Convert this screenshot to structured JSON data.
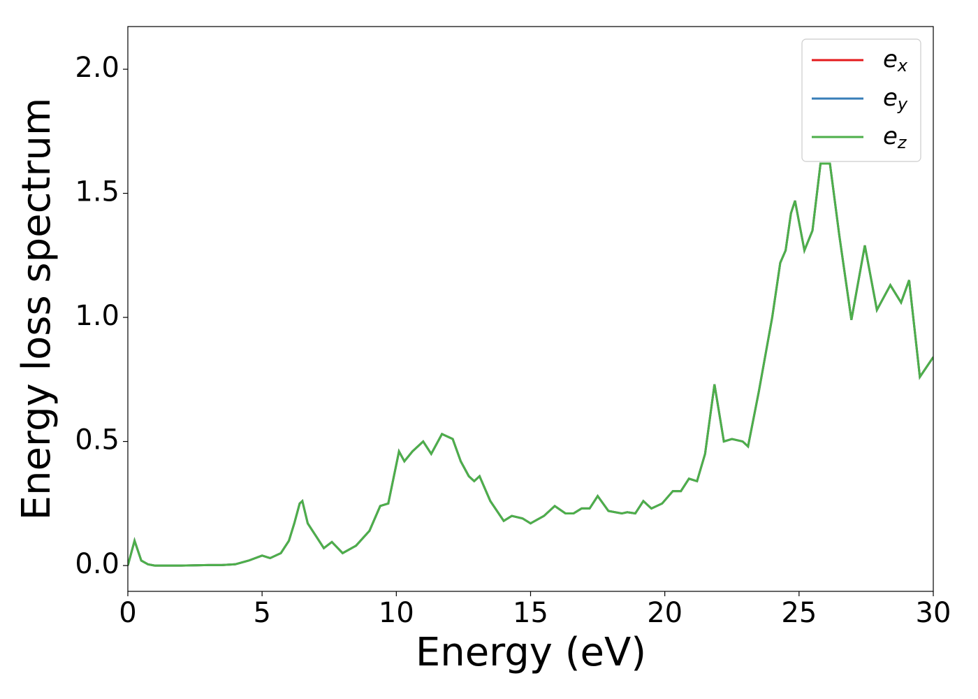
{
  "chart_data": {
    "type": "line",
    "xlabel": "Energy (eV)",
    "ylabel": "Energy loss spectrum",
    "x": [
      0,
      0.25,
      0.5,
      0.75,
      1,
      2,
      3,
      3.5,
      4,
      4.5,
      5,
      5.3,
      5.7,
      6,
      6.2,
      6.4,
      6.5,
      6.7,
      7,
      7.3,
      7.6,
      8,
      8.5,
      9,
      9.4,
      9.7,
      10.1,
      10.3,
      10.6,
      11,
      11.3,
      11.7,
      12.1,
      12.4,
      12.7,
      12.9,
      13.1,
      13.5,
      14,
      14.3,
      14.7,
      15,
      15.5,
      15.9,
      16.3,
      16.6,
      16.9,
      17.2,
      17.5,
      17.9,
      18.4,
      18.6,
      18.9,
      19.2,
      19.5,
      19.9,
      20.3,
      20.6,
      20.9,
      21.2,
      21.5,
      21.85,
      22.2,
      22.5,
      22.9,
      23.1,
      23.5,
      24,
      24.3,
      24.5,
      24.7,
      24.85,
      25.2,
      25.5,
      25.8,
      26,
      26.15,
      26.5,
      26.95,
      27.45,
      27.9,
      28.4,
      28.8,
      29.1,
      29.5,
      30
    ],
    "series": [
      {
        "name": "e_x",
        "color": "#e41a1c",
        "values": [
          0,
          0.1,
          0.02,
          0.005,
          0,
          0,
          0.002,
          0.002,
          0.005,
          0.02,
          0.04,
          0.03,
          0.05,
          0.1,
          0.17,
          0.25,
          0.26,
          0.17,
          0.12,
          0.07,
          0.095,
          0.05,
          0.08,
          0.14,
          0.24,
          0.25,
          0.46,
          0.42,
          0.46,
          0.5,
          0.45,
          0.53,
          0.51,
          0.42,
          0.36,
          0.34,
          0.36,
          0.26,
          0.18,
          0.2,
          0.19,
          0.17,
          0.2,
          0.24,
          0.21,
          0.21,
          0.23,
          0.23,
          0.28,
          0.22,
          0.21,
          0.215,
          0.21,
          0.26,
          0.23,
          0.25,
          0.3,
          0.3,
          0.35,
          0.34,
          0.45,
          0.73,
          0.5,
          0.51,
          0.5,
          0.48,
          0.7,
          1.0,
          1.22,
          1.27,
          1.42,
          1.47,
          1.27,
          1.35,
          1.62,
          1.62,
          1.62,
          1.33,
          0.99,
          1.29,
          1.03,
          1.13,
          1.06,
          1.15,
          0.76,
          0.84
        ]
      },
      {
        "name": "e_y",
        "color": "#377eb8",
        "values": [
          0,
          0.1,
          0.02,
          0.005,
          0,
          0,
          0.002,
          0.002,
          0.005,
          0.02,
          0.04,
          0.03,
          0.05,
          0.1,
          0.17,
          0.25,
          0.26,
          0.17,
          0.12,
          0.07,
          0.095,
          0.05,
          0.08,
          0.14,
          0.24,
          0.25,
          0.46,
          0.42,
          0.46,
          0.5,
          0.45,
          0.53,
          0.51,
          0.42,
          0.36,
          0.34,
          0.36,
          0.26,
          0.18,
          0.2,
          0.19,
          0.17,
          0.2,
          0.24,
          0.21,
          0.21,
          0.23,
          0.23,
          0.28,
          0.22,
          0.21,
          0.215,
          0.21,
          0.26,
          0.23,
          0.25,
          0.3,
          0.3,
          0.35,
          0.34,
          0.45,
          0.73,
          0.5,
          0.51,
          0.5,
          0.48,
          0.7,
          1.0,
          1.22,
          1.27,
          1.42,
          1.47,
          1.27,
          1.35,
          1.62,
          1.62,
          1.62,
          1.33,
          0.99,
          1.29,
          1.03,
          1.13,
          1.06,
          1.15,
          0.76,
          0.84
        ]
      },
      {
        "name": "e_z",
        "color": "#4daf4a",
        "values": [
          0,
          0.1,
          0.02,
          0.005,
          0,
          0,
          0.002,
          0.002,
          0.005,
          0.02,
          0.04,
          0.03,
          0.05,
          0.1,
          0.17,
          0.25,
          0.26,
          0.17,
          0.12,
          0.07,
          0.095,
          0.05,
          0.08,
          0.14,
          0.24,
          0.25,
          0.46,
          0.42,
          0.46,
          0.5,
          0.45,
          0.53,
          0.51,
          0.42,
          0.36,
          0.34,
          0.36,
          0.26,
          0.18,
          0.2,
          0.19,
          0.17,
          0.2,
          0.24,
          0.21,
          0.21,
          0.23,
          0.23,
          0.28,
          0.22,
          0.21,
          0.215,
          0.21,
          0.26,
          0.23,
          0.25,
          0.3,
          0.3,
          0.35,
          0.34,
          0.45,
          0.73,
          0.5,
          0.51,
          0.5,
          0.48,
          0.7,
          1.0,
          1.22,
          1.27,
          1.42,
          1.47,
          1.27,
          1.35,
          1.62,
          1.62,
          1.62,
          1.33,
          0.99,
          1.29,
          1.03,
          1.13,
          1.06,
          1.15,
          0.76,
          0.84
        ]
      }
    ],
    "xlim": [
      0,
      30
    ],
    "xticks": [
      0,
      5,
      10,
      15,
      20,
      25,
      30
    ],
    "ylim": [
      -0.104,
      2.172
    ],
    "yticks": [
      {
        "value": 0,
        "label": "0.0"
      },
      0.5,
      {
        "value": 1,
        "label": "1.0"
      },
      1.5,
      {
        "value": 2,
        "label": "2.0"
      }
    ],
    "grid": false,
    "legend": "upper right"
  }
}
